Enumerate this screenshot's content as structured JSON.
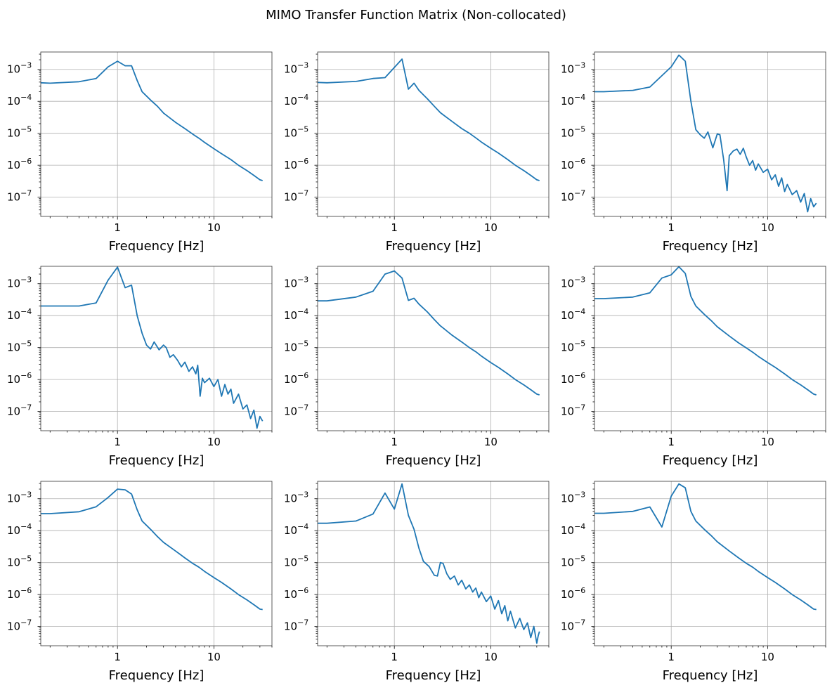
{
  "figure": {
    "title": "MIMO Transfer Function Matrix (Non-collocated)",
    "line_color": "#1f77b4"
  },
  "chart_data": [
    {
      "type": "line",
      "xlabel": "Frequency [Hz]",
      "xscale": "log",
      "yscale": "log",
      "xlim": [
        0.16,
        40
      ],
      "ylim": [
        2.5e-08,
        0.0035
      ],
      "xticks": [
        {
          "v": 1,
          "label": "1"
        },
        {
          "v": 10,
          "label": "10"
        }
      ],
      "yticks": [
        {
          "v": 0.001,
          "label": "10",
          "exp": "−3"
        },
        {
          "v": 0.0001,
          "label": "10",
          "exp": "−4"
        },
        {
          "v": 1e-05,
          "label": "10",
          "exp": "−5"
        },
        {
          "v": 1e-06,
          "label": "10",
          "exp": "−6"
        },
        {
          "v": 1e-07,
          "label": "10",
          "exp": "−7"
        }
      ],
      "grid": true,
      "x": [
        0.16,
        0.2,
        0.4,
        0.6,
        0.8,
        1.0,
        1.2,
        1.4,
        1.6,
        1.8,
        2.2,
        2.6,
        3.0,
        4.0,
        5.0,
        6.0,
        7.0,
        8.0,
        10.0,
        12.0,
        15.0,
        18.0,
        22.0,
        26.0,
        30.0,
        32.0
      ],
      "y": [
        0.00038,
        0.00037,
        0.00041,
        0.00052,
        0.0012,
        0.0018,
        0.0013,
        0.0013,
        0.00045,
        0.0002,
        0.00011,
        7e-05,
        4.3e-05,
        2.2e-05,
        1.4e-05,
        9.5e-06,
        7e-06,
        5.2e-06,
        3.3e-06,
        2.3e-06,
        1.5e-06,
        1e-06,
        6.8e-07,
        4.8e-07,
        3.5e-07,
        3.3e-07
      ]
    },
    {
      "type": "line",
      "xlabel": "Frequency [Hz]",
      "xscale": "log",
      "yscale": "log",
      "xlim": [
        0.16,
        40
      ],
      "ylim": [
        2.5e-08,
        0.0035
      ],
      "xticks": [
        {
          "v": 1,
          "label": "1"
        },
        {
          "v": 10,
          "label": "10"
        }
      ],
      "yticks": [
        {
          "v": 0.001,
          "label": "10",
          "exp": "−3"
        },
        {
          "v": 0.0001,
          "label": "10",
          "exp": "−4"
        },
        {
          "v": 1e-05,
          "label": "10",
          "exp": "−5"
        },
        {
          "v": 1e-06,
          "label": "10",
          "exp": "−6"
        },
        {
          "v": 1e-07,
          "label": "10",
          "exp": "−7"
        }
      ],
      "grid": true,
      "x": [
        0.16,
        0.2,
        0.4,
        0.6,
        0.8,
        1.2,
        1.4,
        1.6,
        1.8,
        2.2,
        2.6,
        3.0,
        4.0,
        5.0,
        6.0,
        7.0,
        8.0,
        10.0,
        12.0,
        15.0,
        18.0,
        22.0,
        26.0,
        30.0,
        32.0
      ],
      "y": [
        0.00039,
        0.00038,
        0.00042,
        0.00052,
        0.00055,
        0.0021,
        0.00024,
        0.00037,
        0.00022,
        0.00012,
        7e-05,
        4.4e-05,
        2.3e-05,
        1.4e-05,
        1e-05,
        7.2e-06,
        5.3e-06,
        3.4e-06,
        2.4e-06,
        1.5e-06,
        1e-06,
        6.8e-07,
        4.8e-07,
        3.5e-07,
        3.3e-07
      ]
    },
    {
      "type": "line",
      "xlabel": "Frequency [Hz]",
      "xscale": "log",
      "yscale": "log",
      "xlim": [
        0.16,
        40
      ],
      "ylim": [
        2.5e-08,
        0.0035
      ],
      "xticks": [
        {
          "v": 1,
          "label": "1"
        },
        {
          "v": 10,
          "label": "10"
        }
      ],
      "yticks": [
        {
          "v": 0.001,
          "label": "10",
          "exp": "−3"
        },
        {
          "v": 0.0001,
          "label": "10",
          "exp": "−4"
        },
        {
          "v": 1e-05,
          "label": "10",
          "exp": "−5"
        },
        {
          "v": 1e-06,
          "label": "10",
          "exp": "−6"
        },
        {
          "v": 1e-07,
          "label": "10",
          "exp": "−7"
        }
      ],
      "grid": true,
      "x": [
        0.16,
        0.2,
        0.4,
        0.6,
        1.0,
        1.2,
        1.4,
        1.6,
        1.8,
        2.0,
        2.2,
        2.4,
        2.7,
        3.0,
        3.2,
        3.5,
        3.8,
        4.0,
        4.4,
        4.8,
        5.2,
        5.6,
        6.0,
        6.5,
        7.0,
        7.5,
        8.0,
        9.0,
        10.0,
        11.0,
        12.0,
        13.0,
        14.0,
        15.0,
        16.0,
        18.0,
        20.0,
        22.0,
        24.0,
        26.0,
        28.0,
        30.0,
        32.0
      ],
      "y": [
        0.0002,
        0.0002,
        0.00022,
        0.00028,
        0.0012,
        0.0028,
        0.0018,
        0.0001,
        1.3e-05,
        9e-06,
        7e-06,
        1.1e-05,
        3.5e-06,
        9.5e-06,
        9e-06,
        1.5e-06,
        1.6e-07,
        2e-06,
        2.8e-06,
        3.2e-06,
        2.2e-06,
        3.4e-06,
        1.8e-06,
        1e-06,
        1.4e-06,
        7e-07,
        1.1e-06,
        6e-07,
        7.5e-07,
        3.5e-07,
        5e-07,
        2.2e-07,
        4e-07,
        1.5e-07,
        2.5e-07,
        1.2e-07,
        1.6e-07,
        7e-08,
        1.3e-07,
        3.5e-08,
        9e-08,
        5e-08,
        6.5e-08
      ]
    },
    {
      "type": "line",
      "xlabel": "Frequency [Hz]",
      "xscale": "log",
      "yscale": "log",
      "xlim": [
        0.16,
        40
      ],
      "ylim": [
        2.5e-08,
        0.0035
      ],
      "xticks": [
        {
          "v": 1,
          "label": "1"
        },
        {
          "v": 10,
          "label": "10"
        }
      ],
      "yticks": [
        {
          "v": 0.001,
          "label": "10",
          "exp": "−3"
        },
        {
          "v": 0.0001,
          "label": "10",
          "exp": "−4"
        },
        {
          "v": 1e-05,
          "label": "10",
          "exp": "−5"
        },
        {
          "v": 1e-06,
          "label": "10",
          "exp": "−6"
        },
        {
          "v": 1e-07,
          "label": "10",
          "exp": "−7"
        }
      ],
      "grid": true,
      "x": [
        0.16,
        0.2,
        0.4,
        0.6,
        0.8,
        1.0,
        1.2,
        1.4,
        1.6,
        1.8,
        2.0,
        2.2,
        2.4,
        2.7,
        3.0,
        3.2,
        3.5,
        3.8,
        4.2,
        4.6,
        5.0,
        5.5,
        6.0,
        6.5,
        6.8,
        7.2,
        7.6,
        8.0,
        9.0,
        10.0,
        11.0,
        12.0,
        13.0,
        14.0,
        15.0,
        16.0,
        18.0,
        20.0,
        22.0,
        24.0,
        26.0,
        28.0,
        30.0,
        32.0
      ],
      "y": [
        0.0002,
        0.0002,
        0.0002,
        0.00025,
        0.0013,
        0.0033,
        0.00075,
        0.0009,
        0.0001,
        2.8e-05,
        1.2e-05,
        9e-06,
        1.5e-05,
        8.5e-06,
        1.2e-05,
        1e-05,
        5e-06,
        6e-06,
        4e-06,
        2.5e-06,
        3.5e-06,
        1.8e-06,
        2.5e-06,
        1.5e-06,
        2.8e-06,
        3e-07,
        1.1e-06,
        8e-07,
        1.1e-06,
        6e-07,
        1e-06,
        3e-07,
        7e-07,
        3.5e-07,
        5e-07,
        1.8e-07,
        3.5e-07,
        1.2e-07,
        1.6e-07,
        6e-08,
        1.1e-07,
        3e-08,
        7e-08,
        5e-08
      ]
    },
    {
      "type": "line",
      "xlabel": "Frequency [Hz]",
      "xscale": "log",
      "yscale": "log",
      "xlim": [
        0.16,
        40
      ],
      "ylim": [
        2.5e-08,
        0.0035
      ],
      "xticks": [
        {
          "v": 1,
          "label": "1"
        },
        {
          "v": 10,
          "label": "10"
        }
      ],
      "yticks": [
        {
          "v": 0.001,
          "label": "10",
          "exp": "−3"
        },
        {
          "v": 0.0001,
          "label": "10",
          "exp": "−4"
        },
        {
          "v": 1e-05,
          "label": "10",
          "exp": "−5"
        },
        {
          "v": 1e-06,
          "label": "10",
          "exp": "−6"
        },
        {
          "v": 1e-07,
          "label": "10",
          "exp": "−7"
        }
      ],
      "grid": true,
      "x": [
        0.16,
        0.2,
        0.4,
        0.6,
        0.8,
        1.0,
        1.2,
        1.4,
        1.6,
        1.8,
        2.2,
        2.6,
        3.0,
        4.0,
        5.0,
        6.0,
        7.0,
        8.0,
        10.0,
        12.0,
        15.0,
        18.0,
        22.0,
        26.0,
        30.0,
        32.0
      ],
      "y": [
        0.00029,
        0.00029,
        0.00038,
        0.00058,
        0.002,
        0.0025,
        0.0015,
        0.0003,
        0.00035,
        0.00023,
        0.00013,
        7.5e-05,
        4.8e-05,
        2.4e-05,
        1.5e-05,
        1e-05,
        7.4e-06,
        5.4e-06,
        3.4e-06,
        2.4e-06,
        1.5e-06,
        1e-06,
        6.8e-07,
        4.8e-07,
        3.5e-07,
        3.3e-07
      ]
    },
    {
      "type": "line",
      "xlabel": "Frequency [Hz]",
      "xscale": "log",
      "yscale": "log",
      "xlim": [
        0.16,
        40
      ],
      "ylim": [
        2.5e-08,
        0.0035
      ],
      "xticks": [
        {
          "v": 1,
          "label": "1"
        },
        {
          "v": 10,
          "label": "10"
        }
      ],
      "yticks": [
        {
          "v": 0.001,
          "label": "10",
          "exp": "−3"
        },
        {
          "v": 0.0001,
          "label": "10",
          "exp": "−4"
        },
        {
          "v": 1e-05,
          "label": "10",
          "exp": "−5"
        },
        {
          "v": 1e-06,
          "label": "10",
          "exp": "−6"
        },
        {
          "v": 1e-07,
          "label": "10",
          "exp": "−7"
        }
      ],
      "grid": true,
      "x": [
        0.16,
        0.2,
        0.4,
        0.6,
        0.8,
        1.0,
        1.2,
        1.4,
        1.6,
        1.8,
        2.2,
        2.6,
        3.0,
        4.0,
        5.0,
        6.0,
        7.0,
        8.0,
        10.0,
        12.0,
        15.0,
        18.0,
        22.0,
        26.0,
        30.0,
        32.0
      ],
      "y": [
        0.00034,
        0.00034,
        0.00038,
        0.00052,
        0.0015,
        0.0019,
        0.0034,
        0.0021,
        0.0004,
        0.0002,
        0.00011,
        7e-05,
        4.5e-05,
        2.3e-05,
        1.4e-05,
        9.8e-06,
        7.2e-06,
        5.3e-06,
        3.4e-06,
        2.4e-06,
        1.5e-06,
        1e-06,
        6.8e-07,
        4.8e-07,
        3.5e-07,
        3.3e-07
      ]
    },
    {
      "type": "line",
      "xlabel": "Frequency [Hz]",
      "xscale": "log",
      "yscale": "log",
      "xlim": [
        0.16,
        40
      ],
      "ylim": [
        2.5e-08,
        0.0035
      ],
      "xticks": [
        {
          "v": 1,
          "label": "1"
        },
        {
          "v": 10,
          "label": "10"
        }
      ],
      "yticks": [
        {
          "v": 0.001,
          "label": "10",
          "exp": "−3"
        },
        {
          "v": 0.0001,
          "label": "10",
          "exp": "−4"
        },
        {
          "v": 1e-05,
          "label": "10",
          "exp": "−5"
        },
        {
          "v": 1e-06,
          "label": "10",
          "exp": "−6"
        },
        {
          "v": 1e-07,
          "label": "10",
          "exp": "−7"
        }
      ],
      "grid": true,
      "x": [
        0.16,
        0.2,
        0.4,
        0.6,
        0.8,
        1.0,
        1.2,
        1.4,
        1.6,
        1.8,
        2.2,
        2.6,
        3.0,
        4.0,
        5.0,
        6.0,
        7.0,
        8.0,
        10.0,
        12.0,
        15.0,
        18.0,
        22.0,
        26.0,
        30.0,
        32.0
      ],
      "y": [
        0.00034,
        0.00034,
        0.00039,
        0.00056,
        0.0011,
        0.002,
        0.0019,
        0.0014,
        0.00045,
        0.0002,
        0.00011,
        6.5e-05,
        4.3e-05,
        2.3e-05,
        1.4e-05,
        9.5e-06,
        7.2e-06,
        5.3e-06,
        3.4e-06,
        2.4e-06,
        1.5e-06,
        1e-06,
        6.8e-07,
        4.8e-07,
        3.5e-07,
        3.4e-07
      ]
    },
    {
      "type": "line",
      "xlabel": "Frequency [Hz]",
      "xscale": "log",
      "yscale": "log",
      "xlim": [
        0.16,
        40
      ],
      "ylim": [
        2.5e-08,
        0.0035
      ],
      "xticks": [
        {
          "v": 1,
          "label": "1"
        },
        {
          "v": 10,
          "label": "10"
        }
      ],
      "yticks": [
        {
          "v": 0.001,
          "label": "10",
          "exp": "−3"
        },
        {
          "v": 0.0001,
          "label": "10",
          "exp": "−4"
        },
        {
          "v": 1e-05,
          "label": "10",
          "exp": "−5"
        },
        {
          "v": 1e-06,
          "label": "10",
          "exp": "−6"
        },
        {
          "v": 1e-07,
          "label": "10",
          "exp": "−7"
        }
      ],
      "grid": true,
      "x": [
        0.16,
        0.2,
        0.4,
        0.6,
        0.8,
        1.0,
        1.2,
        1.4,
        1.6,
        1.8,
        2.0,
        2.3,
        2.6,
        2.8,
        3.0,
        3.2,
        3.5,
        3.8,
        4.2,
        4.6,
        5.0,
        5.5,
        6.0,
        6.5,
        7.0,
        7.5,
        8.0,
        9.0,
        10.0,
        11.0,
        12.0,
        13.0,
        14.0,
        15.0,
        16.0,
        18.0,
        20.0,
        22.0,
        24.0,
        26.0,
        28.0,
        30.0,
        31.0,
        32.0
      ],
      "y": [
        0.00017,
        0.00017,
        0.0002,
        0.00033,
        0.0015,
        0.00047,
        0.0029,
        0.0003,
        0.00011,
        2.8e-05,
        1.1e-05,
        7.5e-06,
        4e-06,
        3.8e-06,
        1e-05,
        9.5e-06,
        4.5e-06,
        3e-06,
        3.8e-06,
        2e-06,
        2.8e-06,
        1.5e-06,
        2e-06,
        1.2e-06,
        1.6e-06,
        8e-07,
        1.2e-06,
        6e-07,
        9e-07,
        3.5e-07,
        6.5e-07,
        2.5e-07,
        4.5e-07,
        1.5e-07,
        3e-07,
        9e-08,
        1.8e-07,
        8e-08,
        1.3e-07,
        4.5e-08,
        1e-07,
        3e-08,
        5e-08,
        7e-08
      ]
    },
    {
      "type": "line",
      "xlabel": "Frequency [Hz]",
      "xscale": "log",
      "yscale": "log",
      "xlim": [
        0.16,
        40
      ],
      "ylim": [
        2.5e-08,
        0.0035
      ],
      "xticks": [
        {
          "v": 1,
          "label": "1"
        },
        {
          "v": 10,
          "label": "10"
        }
      ],
      "yticks": [
        {
          "v": 0.001,
          "label": "10",
          "exp": "−3"
        },
        {
          "v": 0.0001,
          "label": "10",
          "exp": "−4"
        },
        {
          "v": 1e-05,
          "label": "10",
          "exp": "−5"
        },
        {
          "v": 1e-06,
          "label": "10",
          "exp": "−6"
        },
        {
          "v": 1e-07,
          "label": "10",
          "exp": "−7"
        }
      ],
      "grid": true,
      "x": [
        0.16,
        0.2,
        0.4,
        0.6,
        0.8,
        1.0,
        1.2,
        1.4,
        1.6,
        1.8,
        2.2,
        2.6,
        3.0,
        4.0,
        5.0,
        6.0,
        7.0,
        8.0,
        10.0,
        12.0,
        15.0,
        18.0,
        22.0,
        26.0,
        30.0,
        32.0
      ],
      "y": [
        0.00035,
        0.00035,
        0.0004,
        0.00055,
        0.00013,
        0.0012,
        0.0029,
        0.0022,
        0.0004,
        0.0002,
        0.00011,
        7e-05,
        4.5e-05,
        2.3e-05,
        1.4e-05,
        9.5e-06,
        7.2e-06,
        5.3e-06,
        3.4e-06,
        2.4e-06,
        1.5e-06,
        1e-06,
        6.8e-07,
        4.8e-07,
        3.5e-07,
        3.4e-07
      ]
    }
  ]
}
